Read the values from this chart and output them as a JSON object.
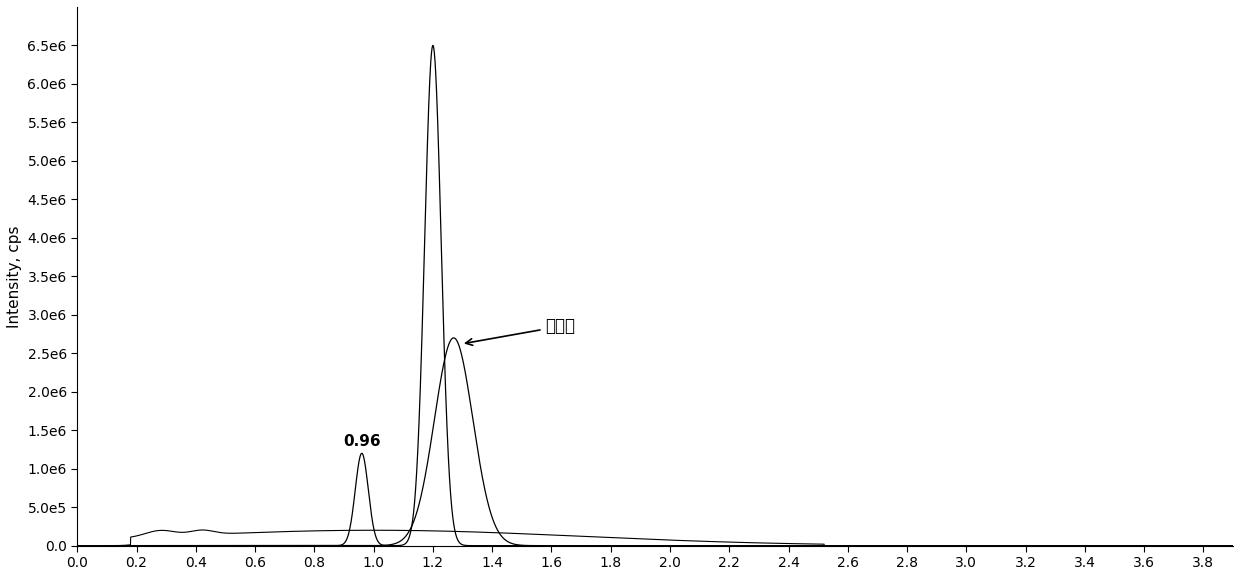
{
  "ylabel": "Intensity, cps",
  "xlabel": "",
  "xlim": [
    0.0,
    3.9
  ],
  "ylim": [
    0.0,
    7000000
  ],
  "xticks": [
    0.0,
    0.2,
    0.4,
    0.6,
    0.8,
    1.0,
    1.2,
    1.4,
    1.6,
    1.8,
    2.0,
    2.2,
    2.4,
    2.6,
    2.8,
    3.0,
    3.2,
    3.4,
    3.6,
    3.8
  ],
  "yticks": [
    0.0,
    500000.0,
    1000000.0,
    1500000.0,
    2000000.0,
    2500000.0,
    3000000.0,
    3500000.0,
    4000000.0,
    4500000.0,
    5000000.0,
    5500000.0,
    6000000.0,
    6500000.0
  ],
  "ytick_labels": [
    "0.0",
    "5.0e5",
    "1.0e6",
    "1.5e6",
    "2.0e6",
    "2.5e6",
    "3.0e6",
    "3.5e6",
    "4.0e6",
    "4.5e6",
    "5.0e6",
    "5.5e6",
    "6.0e6",
    "6.5e6"
  ],
  "peak_label": "0.96",
  "annotation_text": "异烟肼",
  "bg_color": "#ffffff",
  "line_color_narrow": "#000000",
  "line_color_broad": "#000000",
  "line_color_flat": "#000000"
}
